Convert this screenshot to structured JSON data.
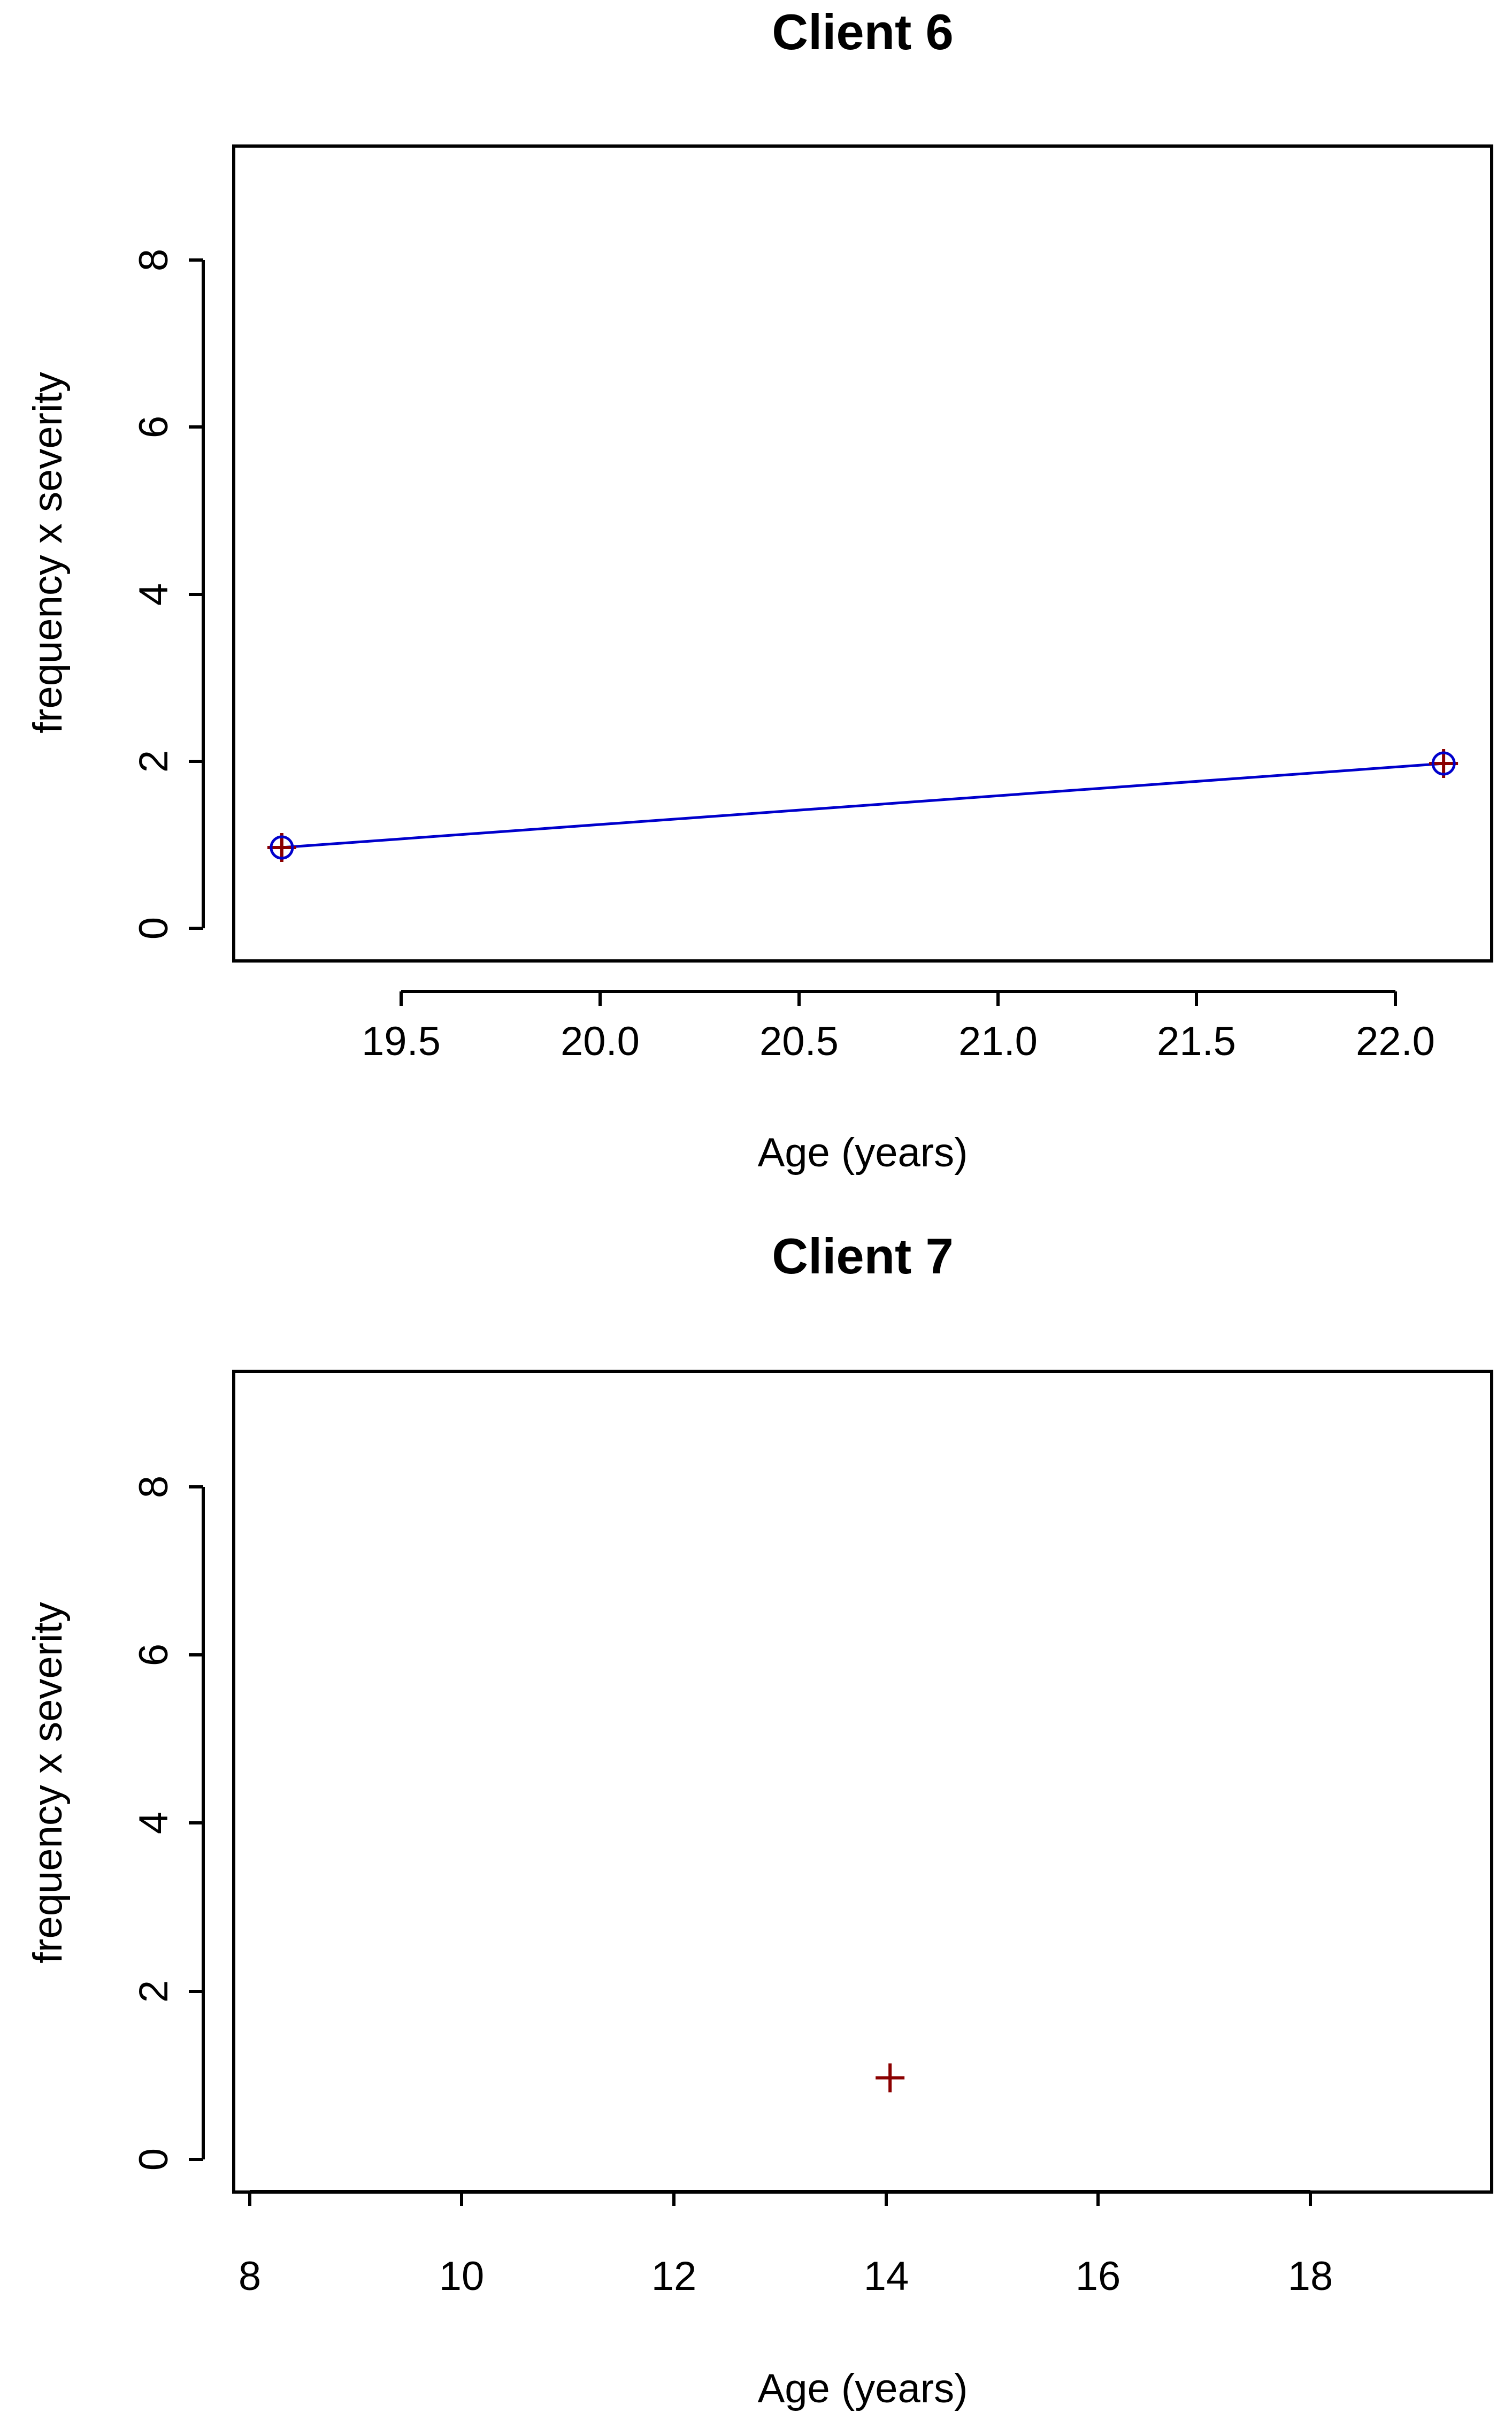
{
  "chart_data": [
    {
      "type": "line",
      "title": "Client 6",
      "xlabel": "Age (years)",
      "ylabel": "frequency x severity",
      "xlim": [
        19.08,
        22.22
      ],
      "ylim": [
        -0.35,
        9.35
      ],
      "x_ticks": [
        "19.5",
        "20.0",
        "20.5",
        "21.0",
        "21.5",
        "22.0"
      ],
      "y_ticks": [
        "0",
        "2",
        "4",
        "6",
        "8"
      ],
      "grid": false,
      "series": [
        {
          "x": [
            19.2,
            22.1
          ],
          "y": [
            1,
            2
          ],
          "line_color": "#0000cc",
          "marker_color": "#8b0000",
          "marker": "circle-plus"
        }
      ]
    },
    {
      "type": "scatter",
      "title": "Client 7",
      "xlabel": "Age (years)",
      "ylabel": "frequency x severity",
      "xlim": [
        7.8,
        19.3
      ],
      "ylim": [
        -0.35,
        9.35
      ],
      "x_ticks": [
        "8",
        "10",
        "12",
        "14",
        "16",
        "18"
      ],
      "y_ticks": [
        "0",
        "2",
        "4",
        "6",
        "8"
      ],
      "grid": false,
      "series": [
        {
          "x": [
            13.8
          ],
          "y": [
            1
          ],
          "marker_color": "#8b0000",
          "marker": "plus"
        }
      ]
    }
  ]
}
